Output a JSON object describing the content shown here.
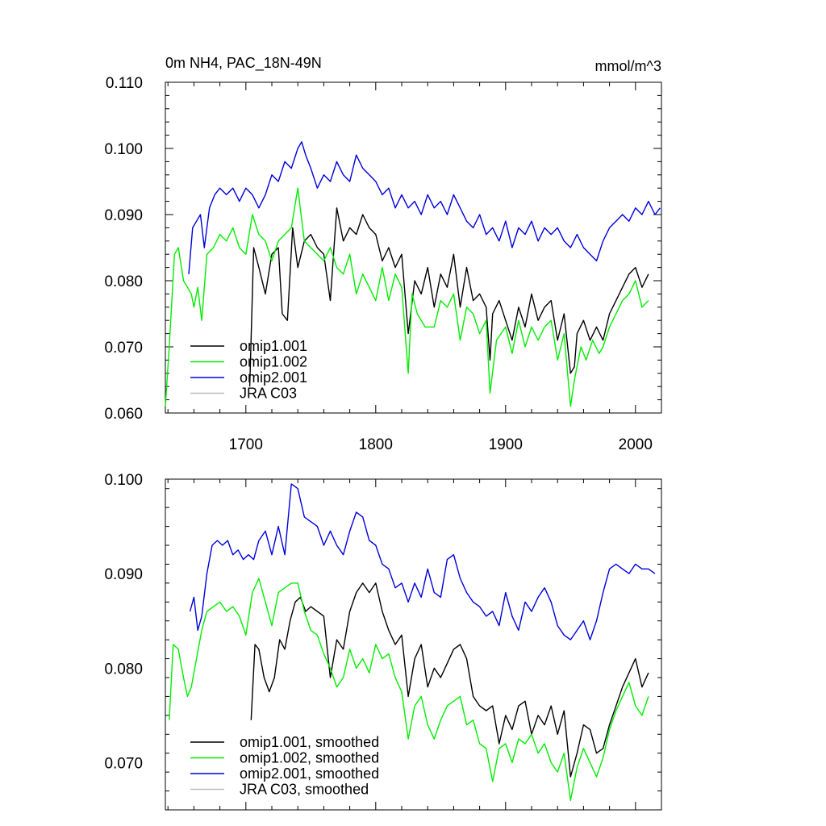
{
  "panel_top": {
    "title": "0m NH4, PAC_18N-49N",
    "units": "mmol/m^3"
  },
  "legend_top": [
    "omip1.001",
    "omip1.002",
    "omip2.001",
    "JRA C03"
  ],
  "legend_bottom": [
    "omip1.001, smoothed",
    "omip1.002, smoothed",
    "omip2.001, smoothed",
    "JRA C03, smoothed"
  ],
  "colors": {
    "omip1_001": "#000000",
    "omip1_002": "#00ee00",
    "omip2_001": "#0000dd",
    "jra_c03": "#bbbbbb"
  },
  "chart_data": [
    {
      "type": "line",
      "title": "0m NH4, PAC_18N-49N",
      "units": "mmol/m^3",
      "xlim": [
        1638,
        2020
      ],
      "ylim": [
        0.06,
        0.11
      ],
      "xticks": [
        1700,
        1800,
        1900,
        2000
      ],
      "yticks": [
        "0.060",
        "0.070",
        "0.080",
        "0.090",
        "0.100",
        "0.110"
      ],
      "series": [
        {
          "name": "omip1.001",
          "x": [
            1703,
            1706,
            1710,
            1715,
            1720,
            1725,
            1728,
            1732,
            1736,
            1740,
            1745,
            1750,
            1755,
            1760,
            1765,
            1770,
            1775,
            1780,
            1785,
            1790,
            1795,
            1800,
            1805,
            1810,
            1815,
            1820,
            1825,
            1830,
            1835,
            1840,
            1845,
            1850,
            1855,
            1860,
            1865,
            1870,
            1875,
            1880,
            1885,
            1888,
            1890,
            1895,
            1900,
            1905,
            1910,
            1915,
            1920,
            1925,
            1930,
            1935,
            1940,
            1945,
            1950,
            1953,
            1955,
            1960,
            1965,
            1970,
            1975,
            1980,
            1985,
            1990,
            1995,
            2000,
            2005,
            2010
          ],
          "y": [
            0.064,
            0.085,
            0.082,
            0.078,
            0.084,
            0.085,
            0.075,
            0.074,
            0.088,
            0.082,
            0.086,
            0.087,
            0.085,
            0.084,
            0.077,
            0.091,
            0.086,
            0.088,
            0.087,
            0.09,
            0.088,
            0.087,
            0.083,
            0.085,
            0.082,
            0.084,
            0.072,
            0.08,
            0.078,
            0.082,
            0.076,
            0.081,
            0.079,
            0.084,
            0.076,
            0.082,
            0.077,
            0.078,
            0.076,
            0.068,
            0.075,
            0.077,
            0.074,
            0.071,
            0.076,
            0.073,
            0.078,
            0.074,
            0.076,
            0.077,
            0.071,
            0.075,
            0.066,
            0.067,
            0.072,
            0.074,
            0.071,
            0.073,
            0.071,
            0.075,
            0.077,
            0.079,
            0.081,
            0.082,
            0.079,
            0.081
          ]
        },
        {
          "name": "omip1.002",
          "x": [
            1638,
            1641,
            1645,
            1648,
            1652,
            1655,
            1658,
            1660,
            1663,
            1666,
            1670,
            1675,
            1680,
            1685,
            1690,
            1695,
            1700,
            1705,
            1710,
            1715,
            1720,
            1725,
            1730,
            1735,
            1740,
            1745,
            1750,
            1755,
            1760,
            1765,
            1770,
            1775,
            1780,
            1785,
            1790,
            1795,
            1800,
            1805,
            1810,
            1815,
            1820,
            1825,
            1828,
            1832,
            1838,
            1845,
            1850,
            1855,
            1860,
            1865,
            1870,
            1875,
            1880,
            1885,
            1888,
            1893,
            1900,
            1905,
            1910,
            1915,
            1920,
            1925,
            1930,
            1935,
            1940,
            1945,
            1950,
            1953,
            1958,
            1962,
            1967,
            1972,
            1975,
            1980,
            1985,
            1990,
            1995,
            2000,
            2005,
            2010
          ],
          "y": [
            0.061,
            0.07,
            0.084,
            0.085,
            0.08,
            0.079,
            0.078,
            0.076,
            0.079,
            0.074,
            0.084,
            0.085,
            0.087,
            0.086,
            0.088,
            0.085,
            0.084,
            0.09,
            0.087,
            0.086,
            0.083,
            0.086,
            0.087,
            0.088,
            0.094,
            0.086,
            0.085,
            0.084,
            0.083,
            0.085,
            0.082,
            0.081,
            0.084,
            0.078,
            0.081,
            0.079,
            0.077,
            0.082,
            0.077,
            0.081,
            0.079,
            0.066,
            0.078,
            0.075,
            0.073,
            0.073,
            0.077,
            0.076,
            0.078,
            0.071,
            0.076,
            0.075,
            0.072,
            0.074,
            0.063,
            0.071,
            0.073,
            0.069,
            0.074,
            0.07,
            0.073,
            0.071,
            0.073,
            0.074,
            0.068,
            0.072,
            0.061,
            0.065,
            0.07,
            0.068,
            0.071,
            0.069,
            0.07,
            0.073,
            0.075,
            0.077,
            0.078,
            0.08,
            0.076,
            0.077
          ]
        },
        {
          "name": "omip2.001",
          "x": [
            1656,
            1659,
            1662,
            1665,
            1668,
            1672,
            1676,
            1680,
            1685,
            1690,
            1695,
            1700,
            1705,
            1710,
            1715,
            1720,
            1725,
            1730,
            1735,
            1740,
            1743,
            1746,
            1750,
            1755,
            1760,
            1765,
            1770,
            1775,
            1780,
            1785,
            1790,
            1795,
            1800,
            1805,
            1810,
            1815,
            1820,
            1825,
            1830,
            1835,
            1840,
            1845,
            1850,
            1855,
            1860,
            1865,
            1870,
            1875,
            1880,
            1885,
            1890,
            1895,
            1900,
            1905,
            1910,
            1915,
            1920,
            1925,
            1930,
            1935,
            1940,
            1945,
            1950,
            1955,
            1960,
            1965,
            1970,
            1975,
            1980,
            1985,
            1990,
            1995,
            2000,
            2005,
            2010,
            2015,
            2019
          ],
          "y": [
            0.081,
            0.088,
            0.089,
            0.09,
            0.085,
            0.091,
            0.093,
            0.094,
            0.093,
            0.094,
            0.092,
            0.094,
            0.093,
            0.091,
            0.093,
            0.096,
            0.095,
            0.098,
            0.097,
            0.1,
            0.101,
            0.099,
            0.097,
            0.094,
            0.096,
            0.095,
            0.098,
            0.096,
            0.095,
            0.099,
            0.097,
            0.096,
            0.095,
            0.093,
            0.094,
            0.091,
            0.093,
            0.091,
            0.092,
            0.09,
            0.093,
            0.091,
            0.092,
            0.09,
            0.093,
            0.091,
            0.089,
            0.088,
            0.09,
            0.087,
            0.088,
            0.086,
            0.089,
            0.085,
            0.088,
            0.087,
            0.089,
            0.086,
            0.088,
            0.087,
            0.088,
            0.086,
            0.085,
            0.087,
            0.085,
            0.084,
            0.083,
            0.086,
            0.088,
            0.089,
            0.09,
            0.089,
            0.091,
            0.09,
            0.092,
            0.09,
            0.091
          ]
        }
      ]
    },
    {
      "type": "line",
      "xlim": [
        1638,
        2020
      ],
      "ylim": [
        0.065,
        0.1
      ],
      "yticks": [
        "0.070",
        "0.080",
        "0.090",
        "0.100"
      ],
      "series": [
        {
          "name": "omip1.001, smoothed",
          "x": [
            1704,
            1707,
            1710,
            1714,
            1718,
            1722,
            1726,
            1730,
            1734,
            1738,
            1742,
            1746,
            1750,
            1755,
            1760,
            1765,
            1770,
            1775,
            1780,
            1785,
            1790,
            1795,
            1800,
            1805,
            1810,
            1815,
            1820,
            1825,
            1830,
            1835,
            1840,
            1845,
            1850,
            1855,
            1860,
            1865,
            1870,
            1875,
            1880,
            1885,
            1890,
            1895,
            1900,
            1905,
            1910,
            1915,
            1920,
            1925,
            1930,
            1935,
            1940,
            1945,
            1950,
            1955,
            1960,
            1965,
            1970,
            1975,
            1980,
            1985,
            1990,
            1995,
            2000,
            2005,
            2010
          ],
          "y": [
            0.0745,
            0.0825,
            0.082,
            0.079,
            0.0775,
            0.079,
            0.083,
            0.082,
            0.085,
            0.087,
            0.0875,
            0.086,
            0.0865,
            0.086,
            0.0855,
            0.079,
            0.083,
            0.082,
            0.086,
            0.088,
            0.089,
            0.088,
            0.089,
            0.086,
            0.084,
            0.0825,
            0.0835,
            0.077,
            0.081,
            0.0825,
            0.078,
            0.08,
            0.079,
            0.0805,
            0.082,
            0.0825,
            0.081,
            0.077,
            0.076,
            0.0755,
            0.076,
            0.072,
            0.075,
            0.0735,
            0.076,
            0.0765,
            0.073,
            0.075,
            0.074,
            0.076,
            0.073,
            0.0755,
            0.0685,
            0.071,
            0.074,
            0.0735,
            0.071,
            0.0715,
            0.074,
            0.076,
            0.078,
            0.0795,
            0.081,
            0.078,
            0.0795
          ]
        },
        {
          "name": "omip1.002, smoothed",
          "x": [
            1641,
            1644,
            1648,
            1652,
            1655,
            1658,
            1662,
            1666,
            1670,
            1675,
            1680,
            1685,
            1690,
            1695,
            1700,
            1705,
            1710,
            1715,
            1720,
            1725,
            1730,
            1735,
            1740,
            1745,
            1750,
            1755,
            1760,
            1765,
            1770,
            1775,
            1780,
            1785,
            1790,
            1795,
            1800,
            1805,
            1810,
            1815,
            1820,
            1825,
            1830,
            1835,
            1840,
            1845,
            1850,
            1855,
            1860,
            1865,
            1870,
            1875,
            1880,
            1885,
            1890,
            1895,
            1900,
            1905,
            1910,
            1915,
            1920,
            1925,
            1930,
            1935,
            1940,
            1945,
            1950,
            1955,
            1960,
            1965,
            1970,
            1975,
            1980,
            1985,
            1990,
            1995,
            2000,
            2005,
            2010
          ],
          "y": [
            0.0745,
            0.0825,
            0.082,
            0.079,
            0.077,
            0.078,
            0.081,
            0.084,
            0.086,
            0.0865,
            0.087,
            0.086,
            0.0865,
            0.0855,
            0.0835,
            0.088,
            0.0895,
            0.087,
            0.0845,
            0.088,
            0.0885,
            0.089,
            0.089,
            0.086,
            0.084,
            0.0835,
            0.0815,
            0.08,
            0.078,
            0.079,
            0.082,
            0.08,
            0.081,
            0.0795,
            0.0825,
            0.081,
            0.0815,
            0.079,
            0.0775,
            0.0725,
            0.076,
            0.077,
            0.074,
            0.0725,
            0.0745,
            0.076,
            0.0765,
            0.077,
            0.074,
            0.0745,
            0.072,
            0.0715,
            0.068,
            0.0715,
            0.072,
            0.07,
            0.0725,
            0.072,
            0.073,
            0.071,
            0.072,
            0.07,
            0.069,
            0.071,
            0.066,
            0.0695,
            0.0715,
            0.07,
            0.0685,
            0.0705,
            0.0735,
            0.0755,
            0.077,
            0.0785,
            0.076,
            0.075,
            0.077
          ]
        },
        {
          "name": "omip2.001, smoothed",
          "x": [
            1657,
            1660,
            1663,
            1666,
            1670,
            1674,
            1678,
            1682,
            1686,
            1690,
            1694,
            1698,
            1702,
            1706,
            1710,
            1715,
            1720,
            1725,
            1730,
            1735,
            1740,
            1745,
            1750,
            1755,
            1760,
            1765,
            1770,
            1775,
            1780,
            1785,
            1790,
            1795,
            1800,
            1805,
            1810,
            1815,
            1820,
            1825,
            1830,
            1835,
            1840,
            1845,
            1850,
            1855,
            1860,
            1865,
            1870,
            1875,
            1880,
            1885,
            1890,
            1895,
            1900,
            1905,
            1910,
            1915,
            1920,
            1925,
            1930,
            1935,
            1940,
            1945,
            1950,
            1955,
            1960,
            1965,
            1970,
            1975,
            1980,
            1985,
            1990,
            1995,
            2000,
            2005,
            2010,
            2015
          ],
          "y": [
            0.086,
            0.0875,
            0.084,
            0.0855,
            0.09,
            0.093,
            0.0935,
            0.093,
            0.0935,
            0.092,
            0.0925,
            0.0915,
            0.092,
            0.0915,
            0.0935,
            0.0945,
            0.092,
            0.095,
            0.092,
            0.0995,
            0.099,
            0.096,
            0.0955,
            0.095,
            0.093,
            0.0945,
            0.093,
            0.092,
            0.0945,
            0.0965,
            0.096,
            0.0935,
            0.093,
            0.091,
            0.0905,
            0.0885,
            0.089,
            0.087,
            0.089,
            0.0875,
            0.0905,
            0.088,
            0.0875,
            0.0915,
            0.092,
            0.0895,
            0.088,
            0.087,
            0.0865,
            0.0855,
            0.086,
            0.0845,
            0.088,
            0.0855,
            0.084,
            0.087,
            0.086,
            0.0875,
            0.0885,
            0.087,
            0.0845,
            0.0835,
            0.083,
            0.084,
            0.085,
            0.083,
            0.085,
            0.088,
            0.0905,
            0.091,
            0.0905,
            0.09,
            0.091,
            0.0905,
            0.0905,
            0.09
          ]
        }
      ]
    }
  ]
}
